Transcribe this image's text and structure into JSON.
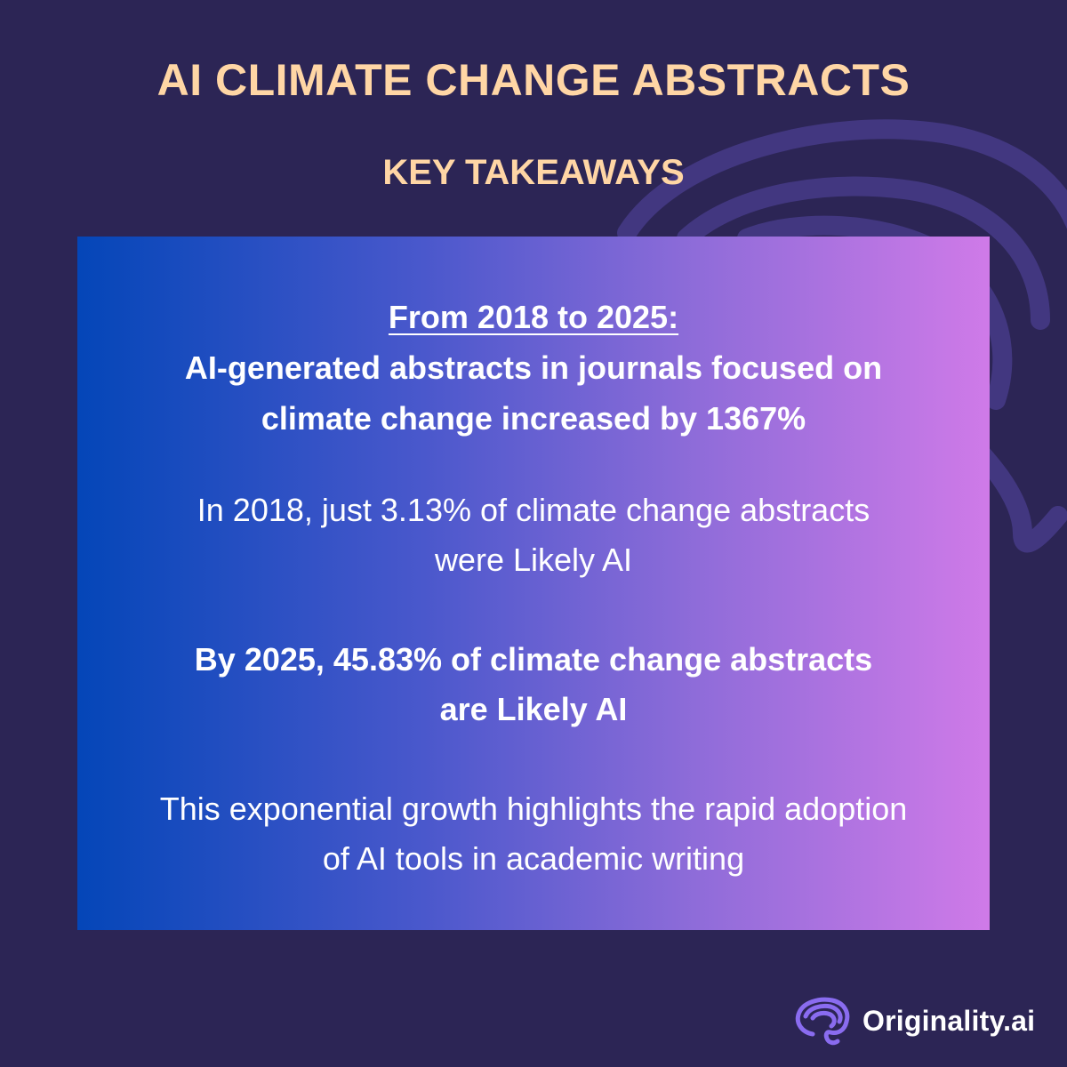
{
  "header": {
    "title": "AI CLIMATE CHANGE ABSTRACTS",
    "subtitle": "KEY TAKEAWAYS"
  },
  "card": {
    "headline_period": "From 2018 to 2025:",
    "headline_line_1": "AI-generated abstracts in journals focused on",
    "headline_line_2": "climate change increased by 1367%",
    "para_1_line_1": "In 2018, just 3.13% of climate change abstracts",
    "para_1_line_2": "were Likely AI",
    "para_2_line_1": "By 2025, 45.83% of climate change abstracts",
    "para_2_line_2": "are Likely AI",
    "para_3_line_1": "This exponential growth highlights the rapid adoption",
    "para_3_line_2": "of AI tools in academic writing"
  },
  "brand": {
    "name": "Originality.ai",
    "icon": "brain-icon"
  },
  "colors": {
    "background": "#2c2555",
    "title": "#ffd6a5",
    "card_gradient_start": "#0446b8",
    "card_gradient_end": "#cf7ae8",
    "swirl": "#4a3f8c",
    "brand_icon": "#8a6cf0"
  }
}
